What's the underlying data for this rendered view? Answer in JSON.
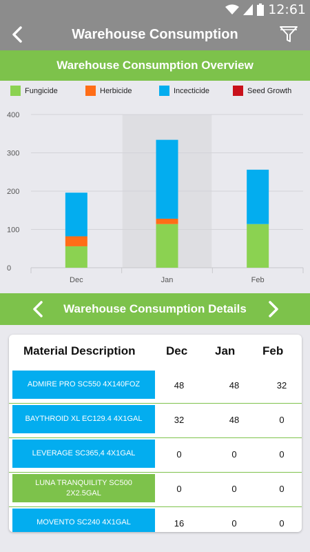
{
  "status_bar": {
    "time": "12:61"
  },
  "app_bar": {
    "title": "Warehouse Consumption"
  },
  "overview": {
    "title": "Warehouse Consumption Overview"
  },
  "details": {
    "title": "Warehouse Consumption Details"
  },
  "colors": {
    "green": "#7dc24b",
    "orange": "#ff6d17",
    "blue": "#03adef",
    "red": "#c9111b"
  },
  "chart_data": {
    "type": "bar",
    "stacked": true,
    "categories": [
      "Dec",
      "Jan",
      "Feb"
    ],
    "series": [
      {
        "name": "Fungicide",
        "color": "#8bd251",
        "values": [
          56,
          114,
          114
        ]
      },
      {
        "name": "Herbicide",
        "color": "#ff6d17",
        "values": [
          26,
          14,
          0
        ]
      },
      {
        "name": "Incecticide",
        "color": "#03adef",
        "values": [
          114,
          206,
          142
        ]
      },
      {
        "name": "Seed Growth",
        "color": "#c9111b",
        "values": [
          0,
          0,
          0
        ]
      }
    ],
    "y_ticks": [
      "0",
      "100",
      "200",
      "300",
      "400"
    ],
    "ylim": [
      0,
      400
    ],
    "highlighted_category": "Jan",
    "grid": true,
    "legend_position": "top"
  },
  "table": {
    "headers": {
      "material": "Material Description",
      "dec": "Dec",
      "jan": "Jan",
      "feb": "Feb"
    },
    "rows": [
      {
        "material": "ADMIRE PRO SC550 4X140FOZ",
        "dec": "48",
        "jan": "48",
        "feb": "32",
        "color": "#03adef"
      },
      {
        "material": "BAYTHROID XL EC129.4 4X1GAL",
        "dec": "32",
        "jan": "48",
        "feb": "0",
        "color": "#03adef"
      },
      {
        "material": "LEVERAGE SC365,4 4X1GAL",
        "dec": "0",
        "jan": "0",
        "feb": "0",
        "color": "#03adef"
      },
      {
        "material": "LUNA TRANQUILITY SC500 2X2.5GAL",
        "dec": "0",
        "jan": "0",
        "feb": "0",
        "color": "#7dc24b"
      },
      {
        "material": "MOVENTO SC240 4X1GAL",
        "dec": "16",
        "jan": "0",
        "feb": "0",
        "color": "#03adef"
      }
    ]
  }
}
